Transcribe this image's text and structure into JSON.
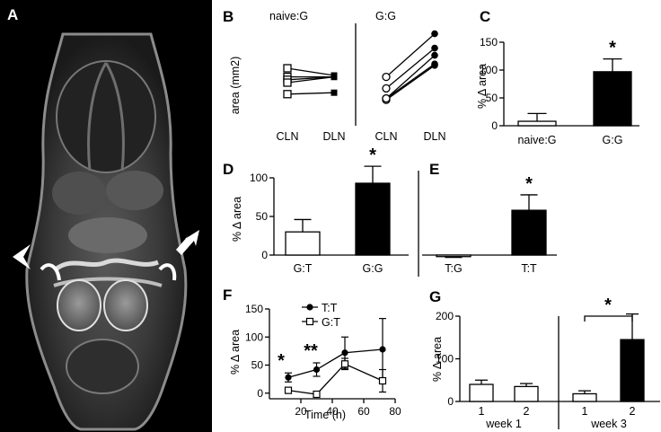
{
  "panels": {
    "A": {
      "label": "A"
    },
    "B": {
      "label": "B"
    },
    "C": {
      "label": "C"
    },
    "D": {
      "label": "D"
    },
    "E": {
      "label": "E"
    },
    "F": {
      "label": "F"
    },
    "G": {
      "label": "G"
    }
  },
  "chart_data": [
    {
      "panel": "B",
      "type": "line",
      "ylabel": "area (mm2)",
      "groups": [
        {
          "title": "naive:G",
          "categories": [
            "CLN",
            "DLN"
          ],
          "pairs": [
            [
              2.0,
              1.75
            ],
            [
              1.7,
              1.7
            ],
            [
              1.6,
              1.7
            ],
            [
              1.5,
              1.7
            ],
            [
              1.1,
              1.15
            ]
          ],
          "cln_marker": "open-square",
          "dln_marker": "filled-square"
        },
        {
          "title": "G:G",
          "categories": [
            "CLN",
            "DLN"
          ],
          "pairs": [
            [
              1.7,
              3.2
            ],
            [
              1.3,
              2.7
            ],
            [
              0.95,
              2.45
            ],
            [
              0.9,
              2.1
            ],
            [
              0.95,
              2.15
            ]
          ],
          "cln_marker": "open-circle",
          "dln_marker": "filled-circle"
        }
      ]
    },
    {
      "panel": "C",
      "type": "bar",
      "ylabel": "% Δ area",
      "ylim": [
        0,
        150
      ],
      "yticks": [
        "0",
        "50",
        "100",
        "150"
      ],
      "categories": [
        "naive:G",
        "G:G"
      ],
      "values": [
        8,
        97
      ],
      "errors": [
        14,
        23
      ],
      "fills": [
        "#ffffff",
        "#000000"
      ],
      "annotations": [
        "",
        "*"
      ]
    },
    {
      "panel": "D",
      "type": "bar",
      "ylabel": "% Δ area",
      "ylim": [
        0,
        100
      ],
      "yticks": [
        "0",
        "50",
        "100"
      ],
      "categories": [
        "G:T",
        "G:G"
      ],
      "values": [
        30,
        93
      ],
      "errors": [
        16,
        22
      ],
      "fills": [
        "#ffffff",
        "#000000"
      ],
      "annotations": [
        "",
        "*"
      ]
    },
    {
      "panel": "E",
      "type": "bar",
      "ylim": [
        0,
        100
      ],
      "categories": [
        "T:G",
        "T:T"
      ],
      "values": [
        -2,
        58
      ],
      "errors": [
        1,
        20
      ],
      "fills": [
        "#ffffff",
        "#000000"
      ],
      "annotations": [
        "",
        "*"
      ]
    },
    {
      "panel": "F",
      "type": "line",
      "xlabel": "Time (h)",
      "ylabel": "% Δ area",
      "xlim": [
        0,
        80
      ],
      "ylim": [
        -10,
        150
      ],
      "xticks": [
        "20",
        "40",
        "60",
        "80"
      ],
      "yticks": [
        "0",
        "50",
        "100",
        "150"
      ],
      "series": [
        {
          "name": "T:T",
          "marker": "filled-circle",
          "x": [
            12,
            30,
            48,
            72
          ],
          "y": [
            28,
            42,
            72,
            78
          ],
          "err": [
            8,
            12,
            28,
            55
          ]
        },
        {
          "name": "G:T",
          "marker": "open-square",
          "x": [
            12,
            30,
            48,
            72
          ],
          "y": [
            5,
            -2,
            52,
            22
          ],
          "err": [
            2,
            2,
            10,
            20
          ]
        }
      ],
      "annotations": [
        "*",
        "**"
      ]
    },
    {
      "panel": "G",
      "type": "bar",
      "ylabel": "% Δ area",
      "ylim": [
        0,
        200
      ],
      "yticks": [
        "0",
        "100",
        "200"
      ],
      "categories": [
        "1",
        "2",
        "1",
        "2"
      ],
      "groups": [
        "week 1",
        "week 3"
      ],
      "values": [
        40,
        35,
        18,
        145
      ],
      "errors": [
        10,
        7,
        7,
        60
      ],
      "fills": [
        "#ffffff",
        "#ffffff",
        "#ffffff",
        "#000000"
      ],
      "annotations": [
        "*"
      ]
    }
  ]
}
